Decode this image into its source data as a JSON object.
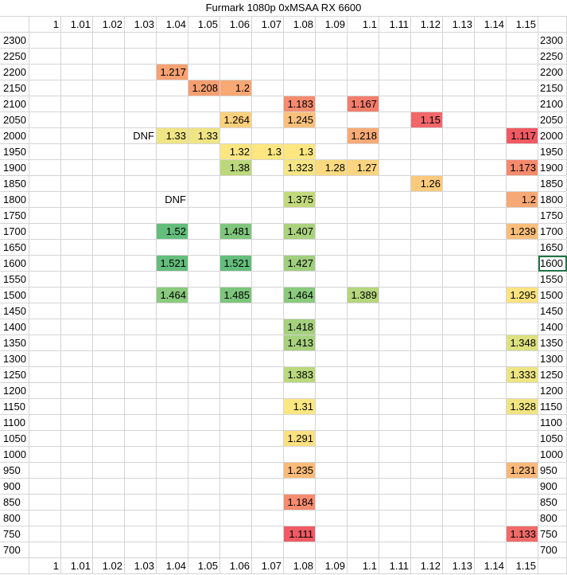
{
  "title": "Furmark 1080p 0xMSAA RX 6600",
  "columns": [
    "1",
    "1.01",
    "1.02",
    "1.03",
    "1.04",
    "1.05",
    "1.06",
    "1.07",
    "1.08",
    "1.09",
    "1.1",
    "1.11",
    "1.12",
    "1.13",
    "1.14",
    "1.15"
  ],
  "rows": [
    "2300",
    "2250",
    "2200",
    "2150",
    "2100",
    "2050",
    "2000",
    "1950",
    "1900",
    "1850",
    "1800",
    "1750",
    "1700",
    "1650",
    "1600",
    "1550",
    "1500",
    "1450",
    "1400",
    "1350",
    "1300",
    "1250",
    "1200",
    "1150",
    "1100",
    "1050",
    "1000",
    "950",
    "900",
    "850",
    "800",
    "750",
    "700"
  ],
  "selected_cell": "1600",
  "values": [
    {
      "row": "2200",
      "col": "1.04",
      "text": "1.217",
      "color": "#f8a172"
    },
    {
      "row": "2150",
      "col": "1.05",
      "text": "1.208",
      "color": "#f79e70"
    },
    {
      "row": "2150",
      "col": "1.06",
      "text": "1.2",
      "color": "#f8a874"
    },
    {
      "row": "2100",
      "col": "1.08",
      "text": "1.183",
      "color": "#f68b6f"
    },
    {
      "row": "2100",
      "col": "1.1",
      "text": "1.167",
      "color": "#f47d6c"
    },
    {
      "row": "2050",
      "col": "1.06",
      "text": "1.264",
      "color": "#fcd07d"
    },
    {
      "row": "2050",
      "col": "1.08",
      "text": "1.245",
      "color": "#fbc07b"
    },
    {
      "row": "2050",
      "col": "1.12",
      "text": "1.15",
      "color": "#f1676a"
    },
    {
      "row": "2000",
      "col": "1.03",
      "text": "DNF",
      "color": ""
    },
    {
      "row": "2000",
      "col": "1.04",
      "text": "1.33",
      "color": "#f0e584"
    },
    {
      "row": "2000",
      "col": "1.05",
      "text": "1.33",
      "color": "#f0e584"
    },
    {
      "row": "2000",
      "col": "1.1",
      "text": "1.218",
      "color": "#f9ab76"
    },
    {
      "row": "2000",
      "col": "1.15",
      "text": "1.117",
      "color": "#f05a63"
    },
    {
      "row": "1950",
      "col": "1.06",
      "text": "1.32",
      "color": "#fbe681"
    },
    {
      "row": "1950",
      "col": "1.07",
      "text": "1.3",
      "color": "#fee680"
    },
    {
      "row": "1950",
      "col": "1.08",
      "text": "1.3",
      "color": "#fee680"
    },
    {
      "row": "1900",
      "col": "1.06",
      "text": "1.38",
      "color": "#bcd87b"
    },
    {
      "row": "1900",
      "col": "1.08",
      "text": "1.323",
      "color": "#f6e683"
    },
    {
      "row": "1900",
      "col": "1.09",
      "text": "1.28",
      "color": "#fdda80"
    },
    {
      "row": "1900",
      "col": "1.1",
      "text": "1.27",
      "color": "#fdd47f"
    },
    {
      "row": "1900",
      "col": "1.15",
      "text": "1.173",
      "color": "#f58a6c"
    },
    {
      "row": "1850",
      "col": "1.12",
      "text": "1.26",
      "color": "#fcca7d"
    },
    {
      "row": "1800",
      "col": "1.04",
      "text": "DNF",
      "color": ""
    },
    {
      "row": "1800",
      "col": "1.08",
      "text": "1.375",
      "color": "#c2da7c"
    },
    {
      "row": "1800",
      "col": "1.15",
      "text": "1.2",
      "color": "#f8a874"
    },
    {
      "row": "1700",
      "col": "1.04",
      "text": "1.52",
      "color": "#63be7b"
    },
    {
      "row": "1700",
      "col": "1.06",
      "text": "1.481",
      "color": "#7fc67c"
    },
    {
      "row": "1700",
      "col": "1.08",
      "text": "1.407",
      "color": "#abd27d"
    },
    {
      "row": "1700",
      "col": "1.15",
      "text": "1.239",
      "color": "#fabe7a"
    },
    {
      "row": "1600",
      "col": "1.04",
      "text": "1.521",
      "color": "#63be7b"
    },
    {
      "row": "1600",
      "col": "1.06",
      "text": "1.521",
      "color": "#63be7b"
    },
    {
      "row": "1600",
      "col": "1.08",
      "text": "1.427",
      "color": "#9fce7d"
    },
    {
      "row": "1500",
      "col": "1.04",
      "text": "1.464",
      "color": "#8aca7d"
    },
    {
      "row": "1500",
      "col": "1.06",
      "text": "1.485",
      "color": "#7cc57c"
    },
    {
      "row": "1500",
      "col": "1.08",
      "text": "1.464",
      "color": "#8aca7d"
    },
    {
      "row": "1500",
      "col": "1.1",
      "text": "1.389",
      "color": "#b5d67c"
    },
    {
      "row": "1500",
      "col": "1.15",
      "text": "1.295",
      "color": "#fee380"
    },
    {
      "row": "1400",
      "col": "1.08",
      "text": "1.418",
      "color": "#a5d07d"
    },
    {
      "row": "1350",
      "col": "1.08",
      "text": "1.413",
      "color": "#a8d17d"
    },
    {
      "row": "1350",
      "col": "1.15",
      "text": "1.348",
      "color": "#dde17f"
    },
    {
      "row": "1250",
      "col": "1.08",
      "text": "1.383",
      "color": "#bad87c"
    },
    {
      "row": "1250",
      "col": "1.15",
      "text": "1.333",
      "color": "#ede582"
    },
    {
      "row": "1150",
      "col": "1.08",
      "text": "1.31",
      "color": "#fde781"
    },
    {
      "row": "1150",
      "col": "1.15",
      "text": "1.328",
      "color": "#f1e582"
    },
    {
      "row": "1050",
      "col": "1.08",
      "text": "1.291",
      "color": "#fde080"
    },
    {
      "row": "950",
      "col": "1.08",
      "text": "1.235",
      "color": "#fbbb79"
    },
    {
      "row": "950",
      "col": "1.15",
      "text": "1.231",
      "color": "#fab879"
    },
    {
      "row": "850",
      "col": "1.08",
      "text": "1.184",
      "color": "#f68c6f"
    },
    {
      "row": "750",
      "col": "1.08",
      "text": "1.111",
      "color": "#f05a64"
    },
    {
      "row": "750",
      "col": "1.15",
      "text": "1.133",
      "color": "#f26a68"
    }
  ]
}
